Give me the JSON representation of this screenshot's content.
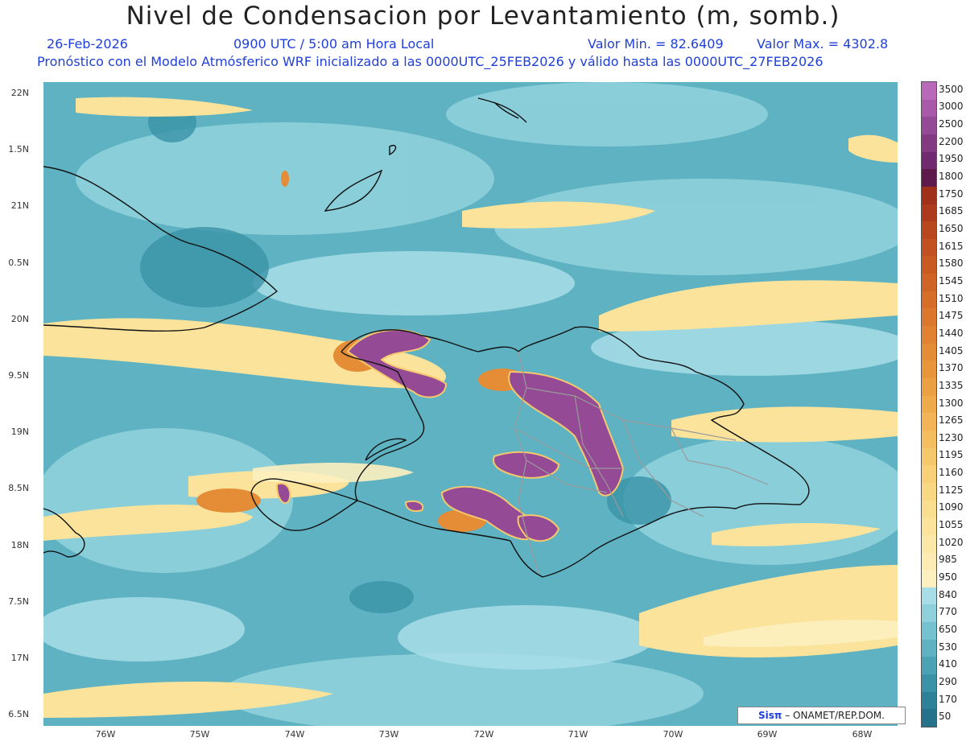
{
  "header": {
    "title": "Nivel de Condensacion por Levantamiento (m, somb.)",
    "date": "26-Feb-2026",
    "time": "0900 UTC / 5:00 am Hora Local",
    "vmin": "Valor Min. = 82.6409",
    "vmax": "Valor Max. = 4302.8",
    "model_line": "Pronóstico con el Modelo Atmósferico WRF inicializado a las 0000UTC_25FEB2026 y válido hasta las  0000UTC_27FEB2026"
  },
  "axes": {
    "lat_labels": [
      "22N",
      "1.5N",
      "21N",
      "0.5N",
      "20N",
      "9.5N",
      "19N",
      "8.5N",
      "18N",
      "7.5N",
      "17N",
      "6.5N"
    ],
    "lon_labels": [
      "76W",
      "75W",
      "74W",
      "73W",
      "72W",
      "71W",
      "70W",
      "69W",
      "68W"
    ]
  },
  "legend": {
    "levels": [
      "3500",
      "3000",
      "2500",
      "2200",
      "1950",
      "1800",
      "1750",
      "1685",
      "1650",
      "1615",
      "1580",
      "1545",
      "1510",
      "1475",
      "1440",
      "1405",
      "1370",
      "1335",
      "1300",
      "1265",
      "1230",
      "1195",
      "1160",
      "1125",
      "1090",
      "1055",
      "1020",
      "985",
      "950",
      "840",
      "770",
      "650",
      "530",
      "410",
      "290",
      "170",
      "50"
    ],
    "colors": [
      "#b86ab8",
      "#a85aa8",
      "#954a95",
      "#833a83",
      "#702a70",
      "#5e1a4a",
      "#a0301a",
      "#ad3a1c",
      "#b8461e",
      "#c25020",
      "#c95a22",
      "#d06426",
      "#d66e2a",
      "#dc782e",
      "#e08232",
      "#e48c36",
      "#e8963c",
      "#eca044",
      "#efaa4c",
      "#f2b456",
      "#f4be60",
      "#f6c86c",
      "#f8d078",
      "#f9d884",
      "#fade90",
      "#fbe39c",
      "#fbe8a8",
      "#fcecb4",
      "#fdf0c0",
      "#a8dde8",
      "#8ed0dc",
      "#74c2d0",
      "#5eb2c2",
      "#4aa2b4",
      "#3a92a6",
      "#2e8298",
      "#25728a"
    ]
  },
  "credit": {
    "brand": "Sisπ",
    "text": " – ONAMET/REP.DOM."
  }
}
